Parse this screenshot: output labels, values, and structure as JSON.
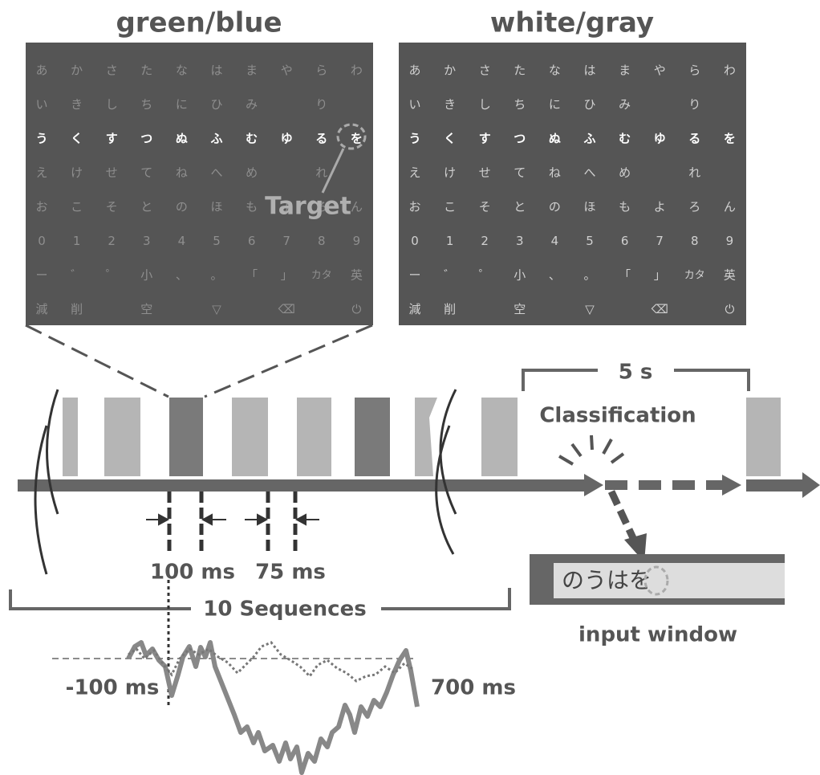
{
  "panels": [
    {
      "title": "green/blue"
    },
    {
      "title": "white/gray"
    }
  ],
  "keyboard": {
    "rows": [
      [
        "あ",
        "か",
        "さ",
        "た",
        "な",
        "は",
        "ま",
        "や",
        "ら",
        "わ"
      ],
      [
        "い",
        "き",
        "し",
        "ち",
        "に",
        "ひ",
        "み",
        null,
        "り",
        null
      ],
      [
        "う",
        "く",
        "す",
        "つ",
        "ぬ",
        "ふ",
        "む",
        "ゆ",
        "る",
        "を"
      ],
      [
        "え",
        "け",
        "せ",
        "て",
        "ね",
        "へ",
        "め",
        null,
        "れ",
        null
      ],
      [
        "お",
        "こ",
        "そ",
        "と",
        "の",
        "ほ",
        "も",
        "よ",
        "ろ",
        "ん"
      ],
      [
        "0",
        "1",
        "2",
        "3",
        "4",
        "5",
        "6",
        "7",
        "8",
        "9"
      ],
      [
        "ー",
        "゛",
        "゜",
        "小",
        "、",
        "。",
        "「",
        "」",
        "カタ",
        "英"
      ],
      [
        "減",
        "削",
        null,
        "空",
        null,
        "▽",
        null,
        "⌫",
        null,
        "⏻"
      ]
    ]
  },
  "target_label": "Target",
  "interval_label": "5 s",
  "classification_label": "Classification",
  "durations": [
    "100 ms",
    "75 ms"
  ],
  "sequences_label": "10 Sequences",
  "erp_range": [
    "-100 ms",
    "700 ms"
  ],
  "input_window": {
    "text": "のうはを",
    "label": "input window"
  }
}
